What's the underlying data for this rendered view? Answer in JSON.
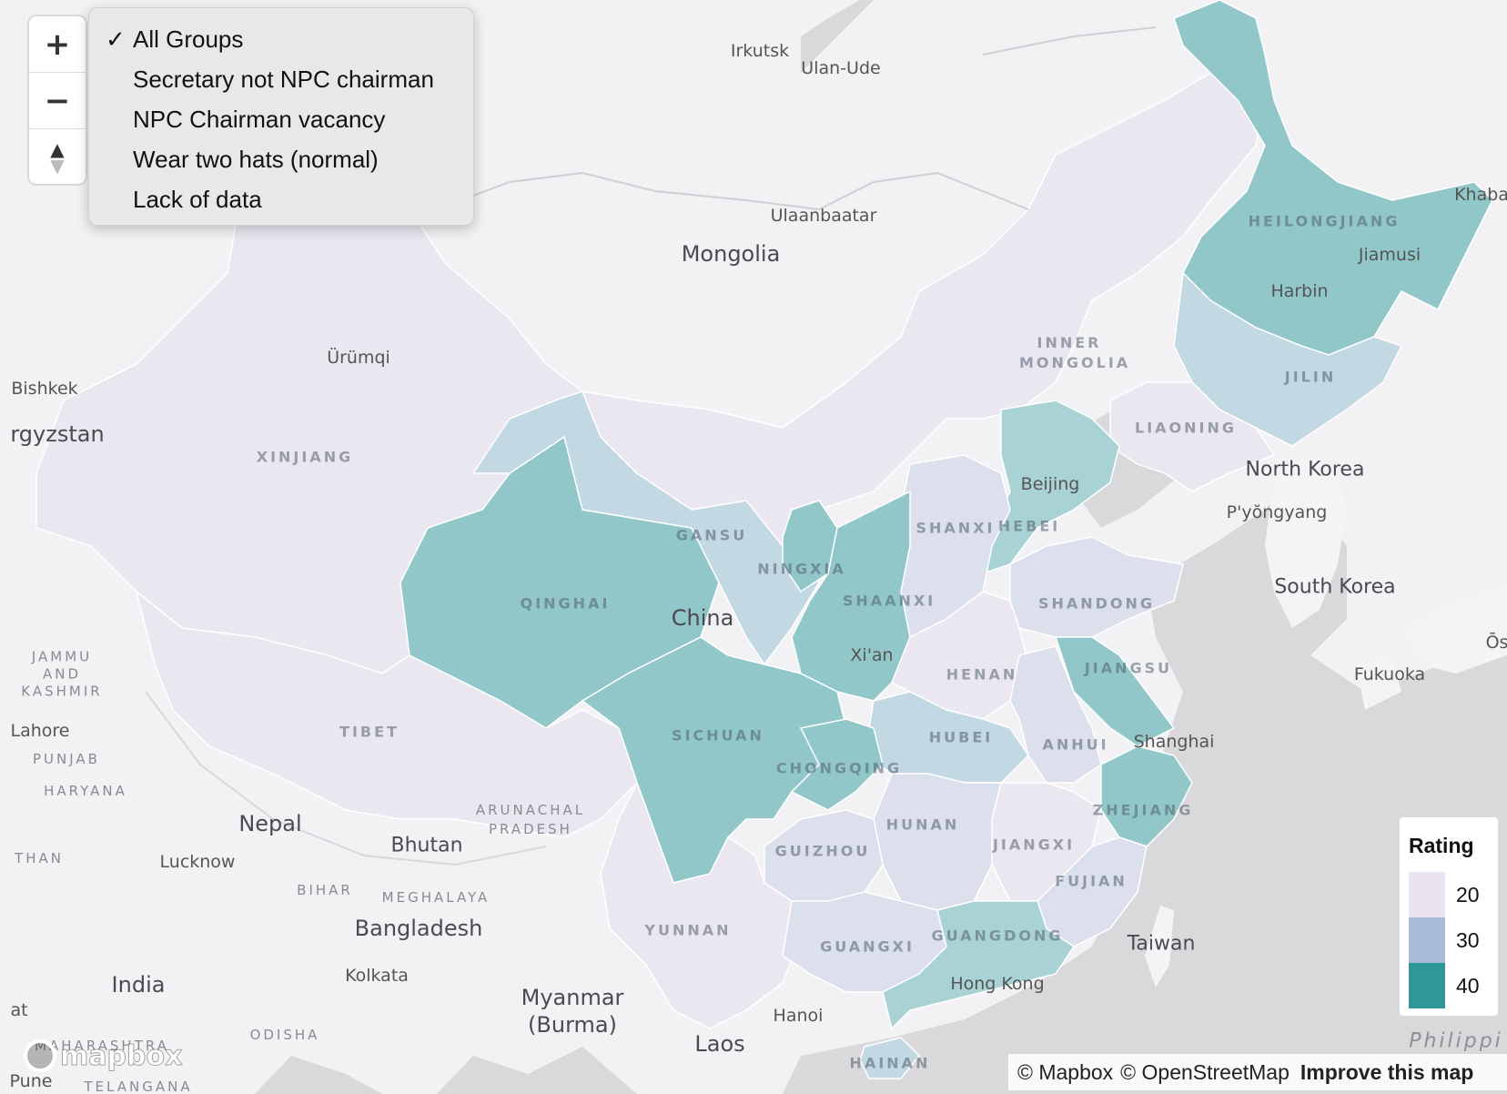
{
  "map": {
    "legend_title": "Rating",
    "legend_items": [
      {
        "value": "20",
        "color": "#e9e4f0"
      },
      {
        "value": "30",
        "color": "#a8bbd6"
      },
      {
        "value": "40",
        "color": "#2e9797"
      }
    ],
    "fill_colors": {
      "low": "#ebe7f1",
      "low_mid": "#dcdfec",
      "mid": "#c2d8e2",
      "high_mid": "#a9d2d5",
      "high": "#91c7c9"
    },
    "province_labels": [
      "HEILONGJIANG",
      "JILIN",
      "LIAONING",
      "INNER MONGOLIA",
      "XINJIANG",
      "GANSU",
      "NINGXIA",
      "QINGHAI",
      "SHAANXI",
      "SHANXI",
      "HEBEI",
      "SHANDONG",
      "HENAN",
      "JIANGSU",
      "ANHUI",
      "HUBEI",
      "TIBET",
      "SICHUAN",
      "CHONGQING",
      "HUNAN",
      "JIANGXI",
      "ZHEJIANG",
      "FUJIAN",
      "GUIZHOU",
      "YUNNAN",
      "GUANGXI",
      "GUANGDONG",
      "HAINAN"
    ],
    "city_labels": [
      "Irkutsk",
      "Ulan-Ude",
      "Ulaanbaatar",
      "Ürümqi",
      "Bishkek",
      "Harbin",
      "Jiamusi",
      "Khaba",
      "Beijing",
      "North Korea",
      "P'yŏngyang",
      "South Korea",
      "Xi'an",
      "Shanghai",
      "Fukuoka",
      "Ōs",
      "Hong Kong",
      "Taiwan",
      "Hanoi",
      "Lucknow",
      "Kolkata",
      "Lahore",
      "Pune",
      "at"
    ],
    "country_labels": [
      "Mongolia",
      "China",
      "rgyzstan",
      "Nepal",
      "Bhutan",
      "Bangladesh",
      "India",
      "Myanmar (Burma)",
      "Laos"
    ],
    "region_labels": [
      "JAMMU AND KASHMIR",
      "PUNJAB",
      "HARYANA",
      "ARUNACHAL PRADESH",
      "BIHAR",
      "MEGHALAYA",
      "ODISHA",
      "THAN",
      "MAHARASHTRA",
      "TELANGANA"
    ],
    "water_labels": [
      "Philippi"
    ]
  },
  "controls": {
    "zoom_in": "+",
    "zoom_out": "−",
    "compass": "▲"
  },
  "filter_menu": {
    "selected_mark": "✓",
    "items": [
      "All Groups",
      "Secretary not NPC chairman",
      "NPC Chairman vacancy",
      "Wear two hats (normal)",
      "Lack of data"
    ],
    "selected_index": 0
  },
  "attribution": {
    "mapbox": "© Mapbox",
    "osm": "© OpenStreetMap",
    "improve": "Improve this map"
  },
  "logo": "mapbox"
}
